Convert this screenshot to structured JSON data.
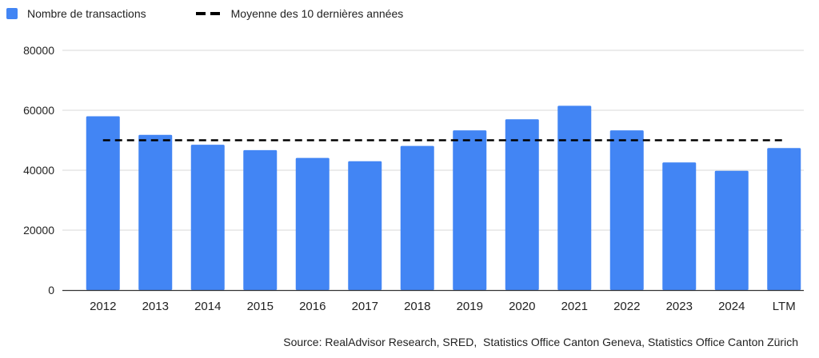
{
  "legend": {
    "bars_label": "Nombre de transactions",
    "line_label": "Moyenne des 10 dernières années"
  },
  "source_text": "Source: RealAdvisor Research, SRED,  Statistics Office Canton Geneva, Statistics Office Canton Zürich",
  "colors": {
    "bar": "#4285F4",
    "average_line": "#000000",
    "grid": "#d9d9d9",
    "axis": "#333333"
  },
  "chart_data": {
    "type": "bar",
    "categories": [
      "2012",
      "2013",
      "2014",
      "2015",
      "2016",
      "2017",
      "2018",
      "2019",
      "2020",
      "2021",
      "2022",
      "2023",
      "2024",
      "LTM"
    ],
    "series": [
      {
        "name": "Nombre de transactions",
        "values": [
          58000,
          51800,
          48500,
          46700,
          44100,
          43000,
          48100,
          53300,
          57000,
          61500,
          53300,
          42600,
          39800,
          47400
        ]
      }
    ],
    "average_line": {
      "name": "Moyenne des 10 dernières années",
      "value": 50000,
      "style": "dashed",
      "from": "2012",
      "to": "LTM"
    },
    "yticks": [
      0,
      20000,
      40000,
      60000,
      80000
    ],
    "ylim": [
      0,
      80000
    ],
    "grid": true,
    "legend_position": "top-left",
    "title": "",
    "xlabel": "",
    "ylabel": ""
  }
}
